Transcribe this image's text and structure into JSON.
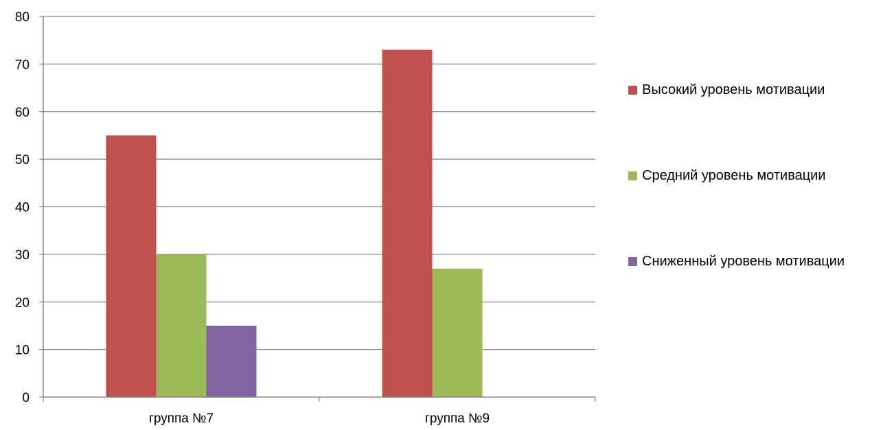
{
  "chart_data": {
    "type": "bar",
    "title": "",
    "xlabel": "",
    "ylabel": "",
    "categories": [
      "группа №7",
      "группа №9"
    ],
    "series": [
      {
        "name": "Высокий уровень мотивации",
        "color": "#C0504D",
        "values": [
          55,
          73
        ]
      },
      {
        "name": "Средний уровень мотивации",
        "color": "#9BBB59",
        "values": [
          30,
          27
        ]
      },
      {
        "name": "Сниженный уровень мотивации",
        "color": "#8064A2",
        "values": [
          15,
          0
        ]
      }
    ],
    "ylim": [
      0,
      80
    ],
    "yticks": [
      "0",
      "10",
      "20",
      "30",
      "40",
      "50",
      "60",
      "70",
      "80"
    ],
    "grid": true,
    "legend_position": "right"
  }
}
